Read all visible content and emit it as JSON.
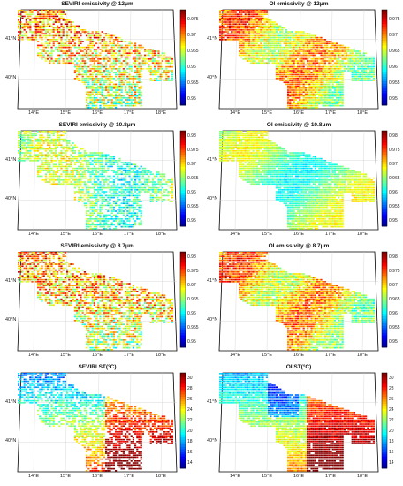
{
  "figure": {
    "panels": [
      {
        "id": "seviri-12",
        "title": "SEVIRI emissivity @ 12μm",
        "lat_labels": [
          "41°N",
          "40°N"
        ],
        "lon_labels": [
          "14°E",
          "15°E",
          "16°E",
          "17°E",
          "18°E"
        ],
        "colorbar": {
          "ticks": [
            "0.975",
            "0.97",
            "0.965",
            "0.96",
            "0.955",
            "0.95"
          ],
          "min": 0.948,
          "max": 0.978
        },
        "pattern": "warm-sparse"
      },
      {
        "id": "oi-12",
        "title": "OI emissivity @ 12μm",
        "lat_labels": [
          "41°N",
          "40°N"
        ],
        "lon_labels": [
          "14°E",
          "15°E",
          "16°E",
          "17°E",
          "18°E"
        ],
        "colorbar": {
          "ticks": [
            "0.975",
            "0.97",
            "0.965",
            "0.96",
            "0.955",
            "0.95"
          ],
          "min": 0.948,
          "max": 0.978
        },
        "pattern": "warm-dense"
      },
      {
        "id": "seviri-108",
        "title": "SEVIRI emissivity @ 10.8μm",
        "lat_labels": [
          "41°N",
          "40°N"
        ],
        "lon_labels": [
          "14°E",
          "15°E",
          "16°E",
          "17°E",
          "18°E"
        ],
        "colorbar": {
          "ticks": [
            "0.98",
            "0.975",
            "0.97",
            "0.965",
            "0.96",
            "0.955",
            "0.95"
          ],
          "min": 0.948,
          "max": 0.982
        },
        "pattern": "mid-sparse"
      },
      {
        "id": "oi-108",
        "title": "OI emissivity @ 10.8μm",
        "lat_labels": [
          "41°N",
          "40°N"
        ],
        "lon_labels": [
          "14°E",
          "15°E",
          "16°E",
          "17°E",
          "18°E"
        ],
        "colorbar": {
          "ticks": [
            "0.98",
            "0.975",
            "0.97",
            "0.965",
            "0.96",
            "0.955",
            "0.95"
          ],
          "min": 0.948,
          "max": 0.982
        },
        "pattern": "mid-dense"
      },
      {
        "id": "seviri-87",
        "title": "SEVIRI emissivity @ 8.7μm",
        "lat_labels": [
          "41°N",
          "40°N"
        ],
        "lon_labels": [
          "14°E",
          "15°E",
          "16°E",
          "17°E",
          "18°E"
        ],
        "colorbar": {
          "ticks": [
            "0.98",
            "0.975",
            "0.97",
            "0.965",
            "0.96",
            "0.955",
            "0.95"
          ],
          "min": 0.948,
          "max": 0.982
        },
        "pattern": "warm-sparse"
      },
      {
        "id": "oi-87",
        "title": "OI emissivity @ 8.7μm",
        "lat_labels": [
          "41°N",
          "40°N"
        ],
        "lon_labels": [
          "14°E",
          "15°E",
          "16°E",
          "17°E",
          "18°E"
        ],
        "colorbar": {
          "ticks": [
            "0.98",
            "0.975",
            "0.97",
            "0.965",
            "0.96",
            "0.955",
            "0.95"
          ],
          "min": 0.948,
          "max": 0.982
        },
        "pattern": "warm-dense"
      },
      {
        "id": "seviri-st",
        "title": "SEVIRI ST(°C)",
        "lat_labels": [
          "41°N",
          "40°N"
        ],
        "lon_labels": [
          "14°E",
          "15°E",
          "16°E",
          "17°E",
          "18°E"
        ],
        "colorbar": {
          "ticks": [
            "30",
            "28",
            "26",
            "24",
            "22",
            "20",
            "18",
            "16",
            "14"
          ],
          "min": 13,
          "max": 31
        },
        "pattern": "st-sparse"
      },
      {
        "id": "oi-st",
        "title": "OI ST(°C)",
        "lat_labels": [
          "41°N",
          "40°N"
        ],
        "lon_labels": [
          "14°E",
          "15°E",
          "16°E",
          "17°E",
          "18°E"
        ],
        "colorbar": {
          "ticks": [
            "30",
            "28",
            "26",
            "24",
            "22",
            "20",
            "18",
            "16",
            "14"
          ],
          "min": 13,
          "max": 31
        },
        "pattern": "st-dense"
      }
    ]
  }
}
